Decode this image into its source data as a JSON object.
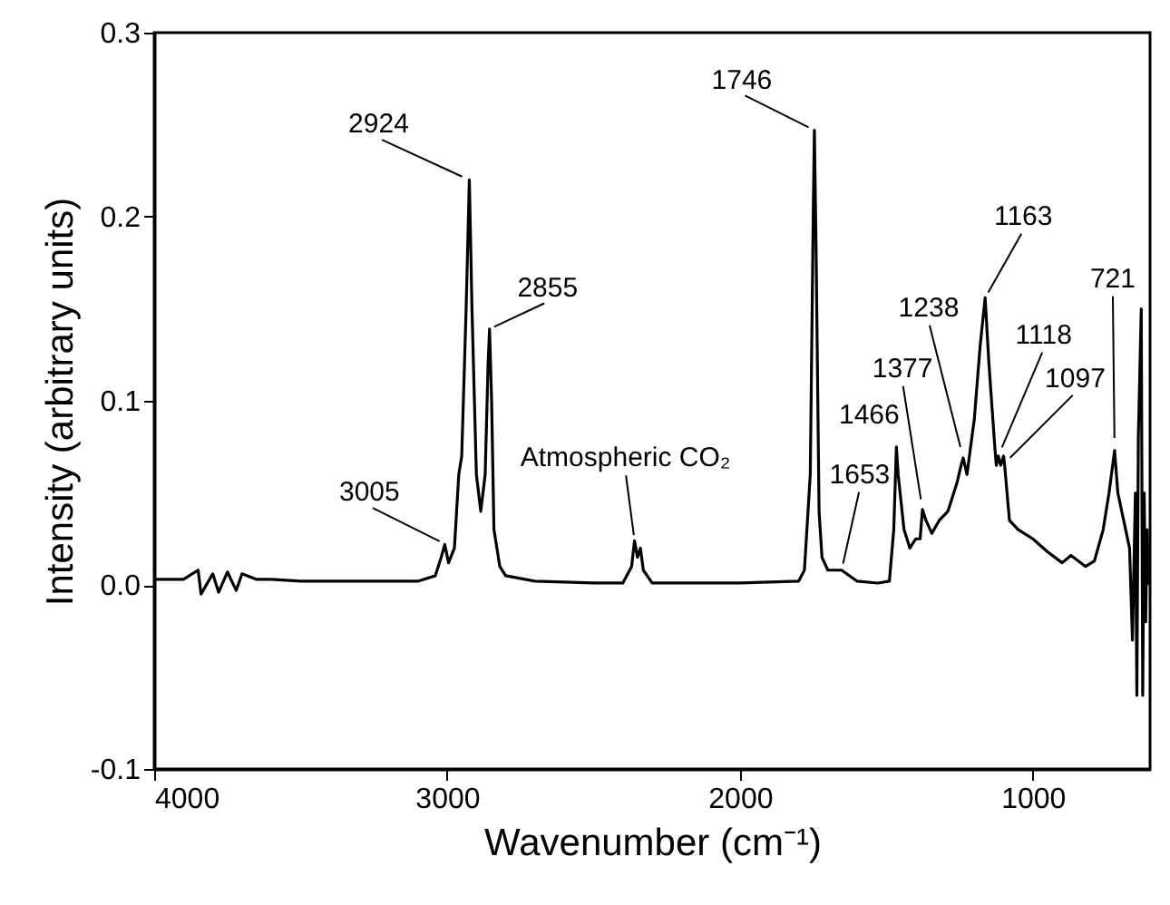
{
  "chart_data": {
    "type": "line",
    "xlabel": "Wavenumber (cm⁻¹)",
    "ylabel": "Intensity (arbitrary units)",
    "xlim": [
      4000,
      600
    ],
    "xticks": [
      4000,
      3000,
      2000,
      1000
    ],
    "ylim": [
      -0.1,
      0.3
    ],
    "yticks": [
      -0.1,
      {
        "value": 0,
        "label": "0.0"
      },
      0.1,
      0.2,
      0.3
    ],
    "grid": false,
    "marker": "none",
    "line_style": "solid",
    "series": [
      {
        "color": "#000000",
        "x": [
          4000,
          3900,
          3850,
          3840,
          3800,
          3780,
          3750,
          3720,
          3700,
          3650,
          3600,
          3500,
          3300,
          3100,
          3040,
          3020,
          3008,
          2995,
          2975,
          2960,
          2950,
          2935,
          2924,
          2915,
          2900,
          2885,
          2870,
          2860,
          2855,
          2848,
          2840,
          2820,
          2800,
          2700,
          2500,
          2400,
          2370,
          2360,
          2350,
          2340,
          2330,
          2300,
          2000,
          1800,
          1780,
          1760,
          1750,
          1746,
          1740,
          1730,
          1720,
          1700,
          1653,
          1600,
          1530,
          1490,
          1475,
          1466,
          1460,
          1440,
          1420,
          1400,
          1385,
          1377,
          1365,
          1345,
          1320,
          1290,
          1260,
          1245,
          1238,
          1225,
          1200,
          1180,
          1163,
          1150,
          1130,
          1125,
          1118,
          1110,
          1100,
          1097,
          1080,
          1050,
          1000,
          950,
          900,
          870,
          820,
          790,
          760,
          740,
          721,
          710,
          690,
          670,
          660,
          650,
          645,
          640,
          630,
          625,
          620,
          615,
          610,
          605
        ],
        "values": [
          0.003,
          0.003,
          0.008,
          -0.005,
          0.006,
          -0.004,
          0.007,
          -0.003,
          0.006,
          0.003,
          0.003,
          0.002,
          0.002,
          0.002,
          0.005,
          0.015,
          0.022,
          0.012,
          0.02,
          0.06,
          0.07,
          0.15,
          0.22,
          0.15,
          0.06,
          0.04,
          0.06,
          0.12,
          0.139,
          0.1,
          0.03,
          0.01,
          0.005,
          0.002,
          0.001,
          0.001,
          0.01,
          0.024,
          0.015,
          0.02,
          0.008,
          0.001,
          0.001,
          0.002,
          0.008,
          0.06,
          0.2,
          0.247,
          0.18,
          0.04,
          0.015,
          0.008,
          0.008,
          0.002,
          0.001,
          0.002,
          0.03,
          0.075,
          0.06,
          0.03,
          0.02,
          0.025,
          0.025,
          0.041,
          0.035,
          0.028,
          0.035,
          0.04,
          0.055,
          0.065,
          0.069,
          0.06,
          0.09,
          0.13,
          0.156,
          0.12,
          0.075,
          0.065,
          0.07,
          0.065,
          0.07,
          0.066,
          0.035,
          0.03,
          0.025,
          0.018,
          0.012,
          0.016,
          0.01,
          0.013,
          0.03,
          0.05,
          0.073,
          0.05,
          0.035,
          0.02,
          -0.03,
          0.05,
          -0.06,
          0.08,
          0.15,
          -0.06,
          0.05,
          -0.02,
          0.03,
          0.0
        ]
      }
    ],
    "annotations": [
      {
        "text": "3005",
        "x": 3005,
        "y": 0.022
      },
      {
        "text": "2924",
        "x": 2924,
        "y": 0.22
      },
      {
        "text": "2855",
        "x": 2855,
        "y": 0.139
      },
      {
        "text": "Atmospheric CO₂",
        "x": 2360,
        "y": 0.024
      },
      {
        "text": "1746",
        "x": 1746,
        "y": 0.247
      },
      {
        "text": "1653",
        "x": 1653,
        "y": 0.008
      },
      {
        "text": "1466",
        "x": 1466,
        "y": 0.075
      },
      {
        "text": "1377",
        "x": 1377,
        "y": 0.041
      },
      {
        "text": "1238",
        "x": 1238,
        "y": 0.069
      },
      {
        "text": "1163",
        "x": 1163,
        "y": 0.156
      },
      {
        "text": "1118",
        "x": 1118,
        "y": 0.07
      },
      {
        "text": "1097",
        "x": 1097,
        "y": 0.066
      },
      {
        "text": "721",
        "x": 721,
        "y": 0.073
      }
    ]
  }
}
